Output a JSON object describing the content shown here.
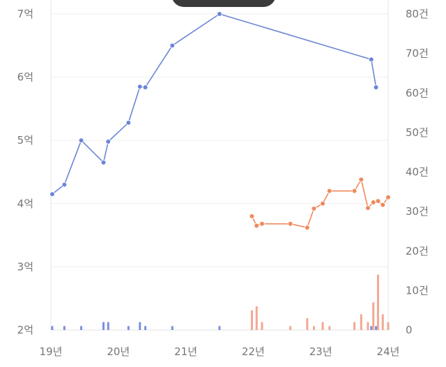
{
  "chart_data": {
    "type": "line",
    "x_axis": {
      "tick_labels": [
        "19년",
        "20년",
        "21년",
        "22년",
        "23년",
        "24년"
      ],
      "range": [
        2019.0,
        2024.0
      ]
    },
    "y_left": {
      "tick_labels": [
        "2억",
        "3억",
        "4억",
        "5억",
        "6억",
        "7억"
      ],
      "range": [
        2.0,
        7.0
      ],
      "unit": "억"
    },
    "y_right": {
      "tick_labels": [
        "0",
        "10건",
        "20건",
        "30건",
        "40건",
        "50건",
        "60건",
        "70건",
        "80건"
      ],
      "range": [
        0,
        80
      ]
    },
    "grid": true,
    "series": [
      {
        "kind": "line",
        "axis": "left",
        "color": "#6b86d6",
        "points": [
          {
            "x": 2019.02,
            "y": 4.15
          },
          {
            "x": 2019.2,
            "y": 4.3
          },
          {
            "x": 2019.45,
            "y": 5.0
          },
          {
            "x": 2019.78,
            "y": 4.65
          },
          {
            "x": 2019.85,
            "y": 4.98
          },
          {
            "x": 2020.15,
            "y": 5.28
          },
          {
            "x": 2020.32,
            "y": 5.85
          },
          {
            "x": 2020.4,
            "y": 5.84
          },
          {
            "x": 2020.8,
            "y": 6.5
          },
          {
            "x": 2021.5,
            "y": 7.0
          },
          {
            "x": 2023.75,
            "y": 6.28
          },
          {
            "x": 2023.82,
            "y": 5.84
          }
        ]
      },
      {
        "kind": "line",
        "axis": "left",
        "color": "#ef8a5c",
        "points": [
          {
            "x": 2021.98,
            "y": 3.8
          },
          {
            "x": 2022.05,
            "y": 3.65
          },
          {
            "x": 2022.13,
            "y": 3.68
          },
          {
            "x": 2022.55,
            "y": 3.68
          },
          {
            "x": 2022.8,
            "y": 3.62
          },
          {
            "x": 2022.9,
            "y": 3.92
          },
          {
            "x": 2023.03,
            "y": 4.0
          },
          {
            "x": 2023.13,
            "y": 4.2
          },
          {
            "x": 2023.5,
            "y": 4.2
          },
          {
            "x": 2023.6,
            "y": 4.38
          },
          {
            "x": 2023.7,
            "y": 3.93
          },
          {
            "x": 2023.78,
            "y": 4.02
          },
          {
            "x": 2023.85,
            "y": 4.04
          },
          {
            "x": 2023.92,
            "y": 3.98
          },
          {
            "x": 2024.0,
            "y": 4.1
          }
        ]
      },
      {
        "kind": "bar",
        "axis": "right",
        "color": "#7b8fe0",
        "points": [
          {
            "x": 2019.02,
            "y": 1
          },
          {
            "x": 2019.2,
            "y": 1
          },
          {
            "x": 2019.45,
            "y": 1
          },
          {
            "x": 2019.78,
            "y": 2
          },
          {
            "x": 2019.85,
            "y": 2
          },
          {
            "x": 2020.15,
            "y": 1
          },
          {
            "x": 2020.32,
            "y": 2
          },
          {
            "x": 2020.4,
            "y": 1
          },
          {
            "x": 2020.8,
            "y": 1
          },
          {
            "x": 2021.5,
            "y": 1
          },
          {
            "x": 2023.75,
            "y": 1
          },
          {
            "x": 2023.82,
            "y": 1
          }
        ]
      },
      {
        "kind": "bar",
        "axis": "right",
        "color": "#f2a893",
        "points": [
          {
            "x": 2021.98,
            "y": 5
          },
          {
            "x": 2022.05,
            "y": 6
          },
          {
            "x": 2022.13,
            "y": 2
          },
          {
            "x": 2022.55,
            "y": 1
          },
          {
            "x": 2022.8,
            "y": 3
          },
          {
            "x": 2022.9,
            "y": 1
          },
          {
            "x": 2023.03,
            "y": 2
          },
          {
            "x": 2023.13,
            "y": 1
          },
          {
            "x": 2023.5,
            "y": 2
          },
          {
            "x": 2023.6,
            "y": 4
          },
          {
            "x": 2023.7,
            "y": 2
          },
          {
            "x": 2023.78,
            "y": 7
          },
          {
            "x": 2023.85,
            "y": 14
          },
          {
            "x": 2023.92,
            "y": 4
          },
          {
            "x": 2024.0,
            "y": 2
          }
        ]
      }
    ]
  }
}
